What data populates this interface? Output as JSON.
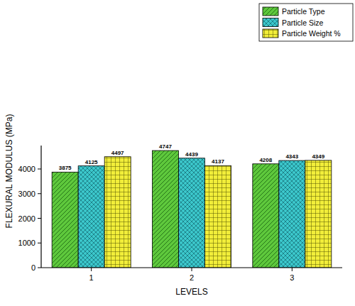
{
  "chart_data": {
    "type": "bar",
    "x_label": "LEVELS",
    "y_label": "FLEXURAL MODULUS (MPa)",
    "categories": [
      "1",
      "2",
      "3"
    ],
    "series": [
      {
        "name": "Particle Type",
        "color": "#5ec83c",
        "values": [
          3875,
          4747,
          4208
        ]
      },
      {
        "name": "Particle Size",
        "color": "#3cc8cc",
        "values": [
          4125,
          4439,
          4343
        ]
      },
      {
        "name": "Particle Weight %",
        "color": "#f2ee3a",
        "values": [
          4497,
          4137,
          4349
        ]
      }
    ],
    "ylim": [
      0,
      4950
    ],
    "yticks": [
      0,
      1000,
      2000,
      3000,
      4000
    ],
    "data_labels": true,
    "legend": "top-right",
    "grid": false
  }
}
